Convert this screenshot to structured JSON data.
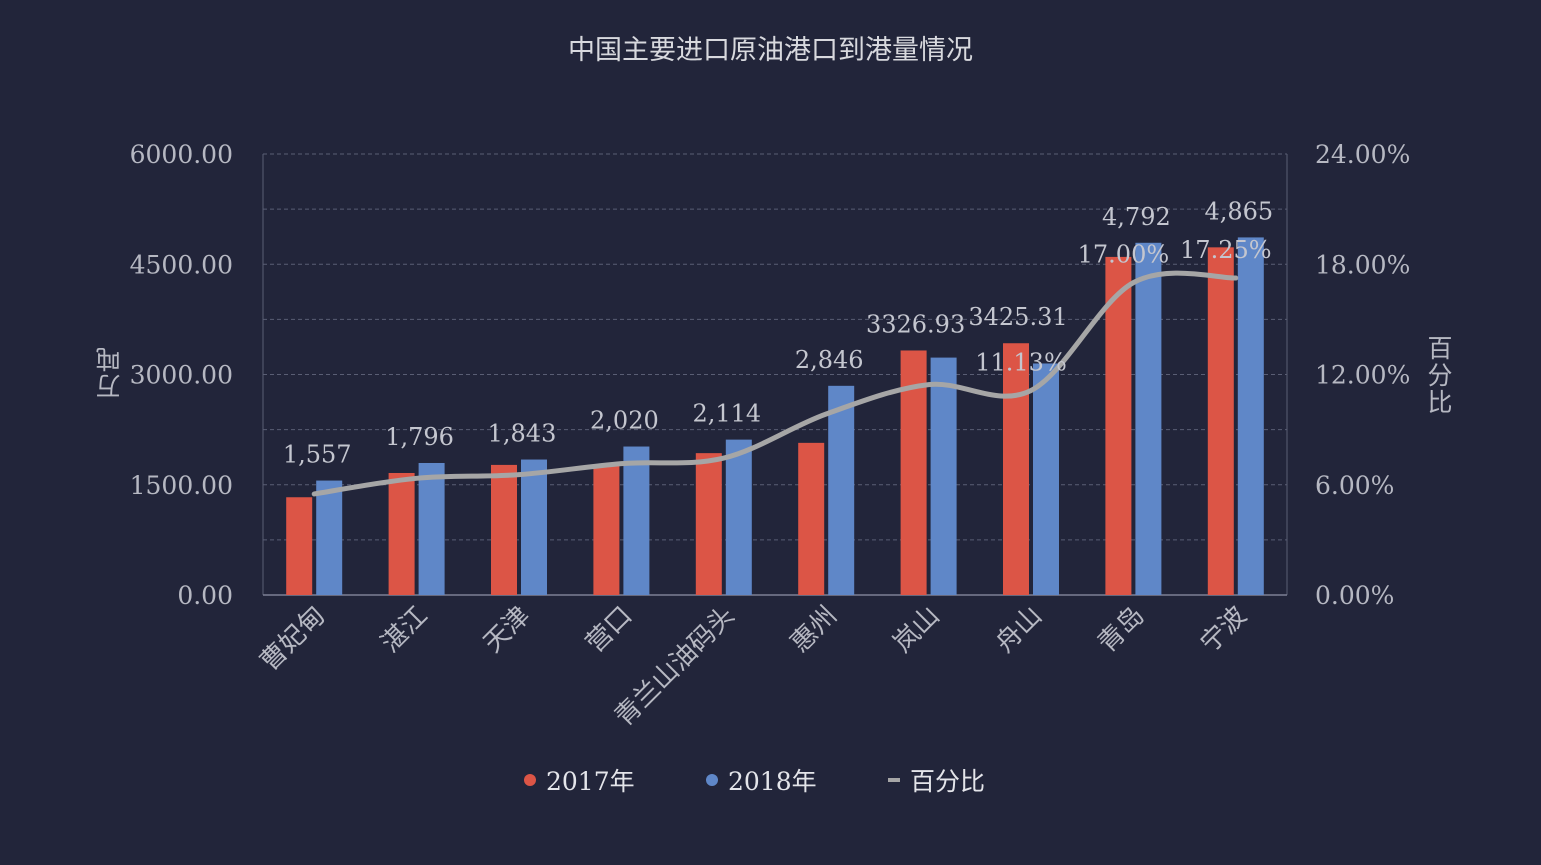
{
  "chart_data": {
    "type": "bar",
    "title": "中国主要进口原油港口到港量情况",
    "ylabel": "万吨",
    "y2label": "百分比",
    "categories": [
      "曹妃甸",
      "湛江",
      "天津",
      "营口",
      "青兰山油码头",
      "惠州",
      "岚山",
      "舟山",
      "青岛",
      "宁波"
    ],
    "ylim": [
      0,
      6000
    ],
    "yticks": [
      "0.00",
      "1500.00",
      "3000.00",
      "4500.00",
      "6000.00"
    ],
    "y2lim": [
      0,
      0.24
    ],
    "y2ticks": [
      "0.00%",
      "6.00%",
      "12.00%",
      "18.00%",
      "24.00%"
    ],
    "series": [
      {
        "name": "2017年",
        "kind": "bar",
        "color": "#dc5546",
        "values": [
          1330,
          1660,
          1770,
          1780,
          1930,
          2070,
          3326.93,
          3425.31,
          4600,
          4730
        ],
        "labels": [
          "",
          "",
          "",
          "",
          "",
          "",
          "3326.93",
          "3425.31",
          "",
          ""
        ]
      },
      {
        "name": "2018年",
        "kind": "bar",
        "color": "#5f87c8",
        "values": [
          1557,
          1796,
          1843,
          2020,
          2114,
          2846,
          3230,
          3150,
          4792,
          4865
        ],
        "labels": [
          "1,557",
          "1,796",
          "1,843",
          "2,020",
          "2,114",
          "2,846",
          "",
          "",
          "4,792",
          "4,865"
        ]
      },
      {
        "name": "百分比",
        "kind": "line",
        "axis": "right",
        "color": "#a6a6a6",
        "values": [
          0.055,
          0.0635,
          0.0655,
          0.0715,
          0.0745,
          0.0985,
          0.1145,
          0.1113,
          0.17,
          0.1725
        ],
        "labels": [
          "",
          "",
          "",
          "",
          "",
          "",
          "",
          "11.13%",
          "17.00%",
          "17.25%"
        ]
      }
    ],
    "grid": true,
    "legend": "bottom"
  }
}
